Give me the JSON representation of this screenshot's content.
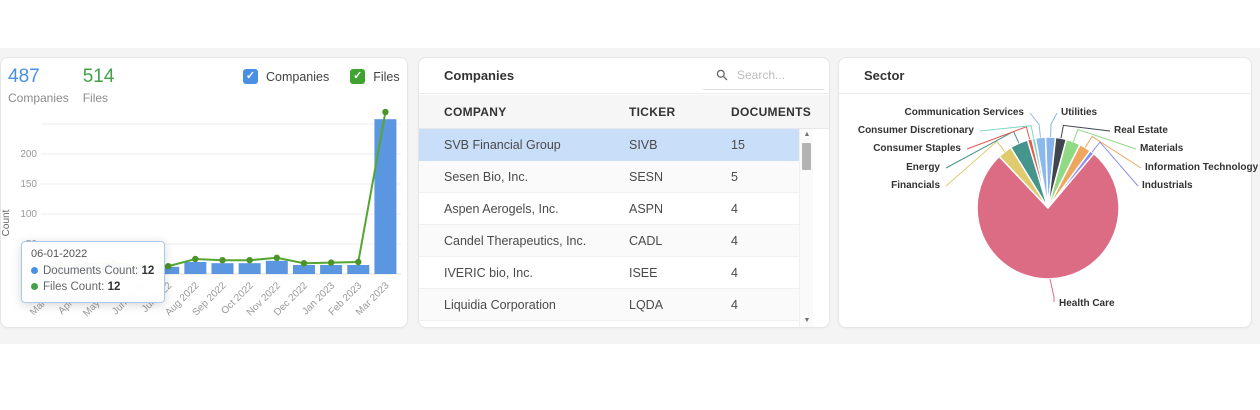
{
  "page": {
    "background": "#ffffff",
    "band_color": "#f4f4f5"
  },
  "activity_panel": {
    "stats": [
      {
        "value": "487",
        "label": "Companies",
        "color": "#4a90e2"
      },
      {
        "value": "514",
        "label": "Files",
        "color": "#43a047"
      }
    ],
    "legend": [
      {
        "label": "Companies",
        "color": "#4a90e2",
        "checked": true
      },
      {
        "label": "Files",
        "color": "#3fa332",
        "checked": true
      }
    ],
    "tooltip": {
      "date": "06-01-2022",
      "rows": [
        {
          "label": "Documents Count",
          "value": "12",
          "color": "#4a90e2"
        },
        {
          "label": "Files Count",
          "value": "12",
          "color": "#43a047"
        }
      ]
    },
    "chart_data": {
      "type": "bar+line",
      "title": "",
      "xlabel": "",
      "ylabel": "Count",
      "categories": [
        "Mar 2022",
        "Apr 2022",
        "May 2022",
        "Jun 2022",
        "Jul 2022",
        "Aug 2022",
        "Sep 2022",
        "Oct 2022",
        "Nov 2022",
        "Dec 2022",
        "Jan 2023",
        "Feb 2023",
        "Mar 2023"
      ],
      "series": [
        {
          "name": "Documents Count",
          "type": "bar",
          "color": "#5b96e0",
          "values": [
            15,
            15,
            18,
            12,
            12,
            20,
            18,
            18,
            22,
            15,
            15,
            15,
            258
          ]
        },
        {
          "name": "Files Count",
          "type": "line",
          "color": "#55a630",
          "values": [
            16,
            16,
            19,
            12,
            13,
            25,
            23,
            23,
            27,
            18,
            19,
            20,
            270
          ]
        }
      ],
      "ylim": [
        0,
        260
      ],
      "yticks": [
        50,
        100,
        150,
        200
      ],
      "gridlines": [
        50,
        100,
        150,
        200,
        250
      ],
      "values_estimated_from_pixels": true
    }
  },
  "companies_panel": {
    "title": "Companies",
    "search_placeholder": "Search...",
    "table": {
      "columns": [
        "COMPANY",
        "TICKER",
        "DOCUMENTS"
      ],
      "rows": [
        {
          "company": "SVB Financial Group",
          "ticker": "SIVB",
          "documents": "15"
        },
        {
          "company": "Sesen Bio, Inc.",
          "ticker": "SESN",
          "documents": "5"
        },
        {
          "company": "Aspen Aerogels, Inc.",
          "ticker": "ASPN",
          "documents": "4"
        },
        {
          "company": "Candel Therapeutics, Inc.",
          "ticker": "CADL",
          "documents": "4"
        },
        {
          "company": "IVERIC bio, Inc.",
          "ticker": "ISEE",
          "documents": "4"
        },
        {
          "company": "Liquidia Corporation",
          "ticker": "LQDA",
          "documents": "4"
        }
      ],
      "selected_index": 0
    }
  },
  "sector_panel": {
    "title": "Sector",
    "chart_data": {
      "type": "pie",
      "title": "Sector",
      "total": 487,
      "values_estimated_from_pixels": true,
      "series": [
        {
          "name": "Utilities",
          "value": 11,
          "color": "#87b3ea"
        },
        {
          "name": "Real Estate",
          "value": 12,
          "color": "#41454d"
        },
        {
          "name": "Materials",
          "value": 16,
          "color": "#90da85"
        },
        {
          "name": "Information Technology",
          "value": 13,
          "color": "#efa75f"
        },
        {
          "name": "Industrials",
          "value": 5,
          "color": "#8a8cf0"
        },
        {
          "name": "Health Care",
          "value": 374,
          "color": "#dc6b84"
        },
        {
          "name": "Financials",
          "value": 16,
          "color": "#dfca6e"
        },
        {
          "name": "Energy",
          "value": 20,
          "color": "#46958c"
        },
        {
          "name": "Consumer Staples",
          "value": 5,
          "color": "#e15b51"
        },
        {
          "name": "Consumer Discretionary",
          "value": 4,
          "color": "#7fd4c4"
        },
        {
          "name": "Communication Services",
          "value": 11,
          "color": "#8cb9ec"
        }
      ]
    }
  }
}
